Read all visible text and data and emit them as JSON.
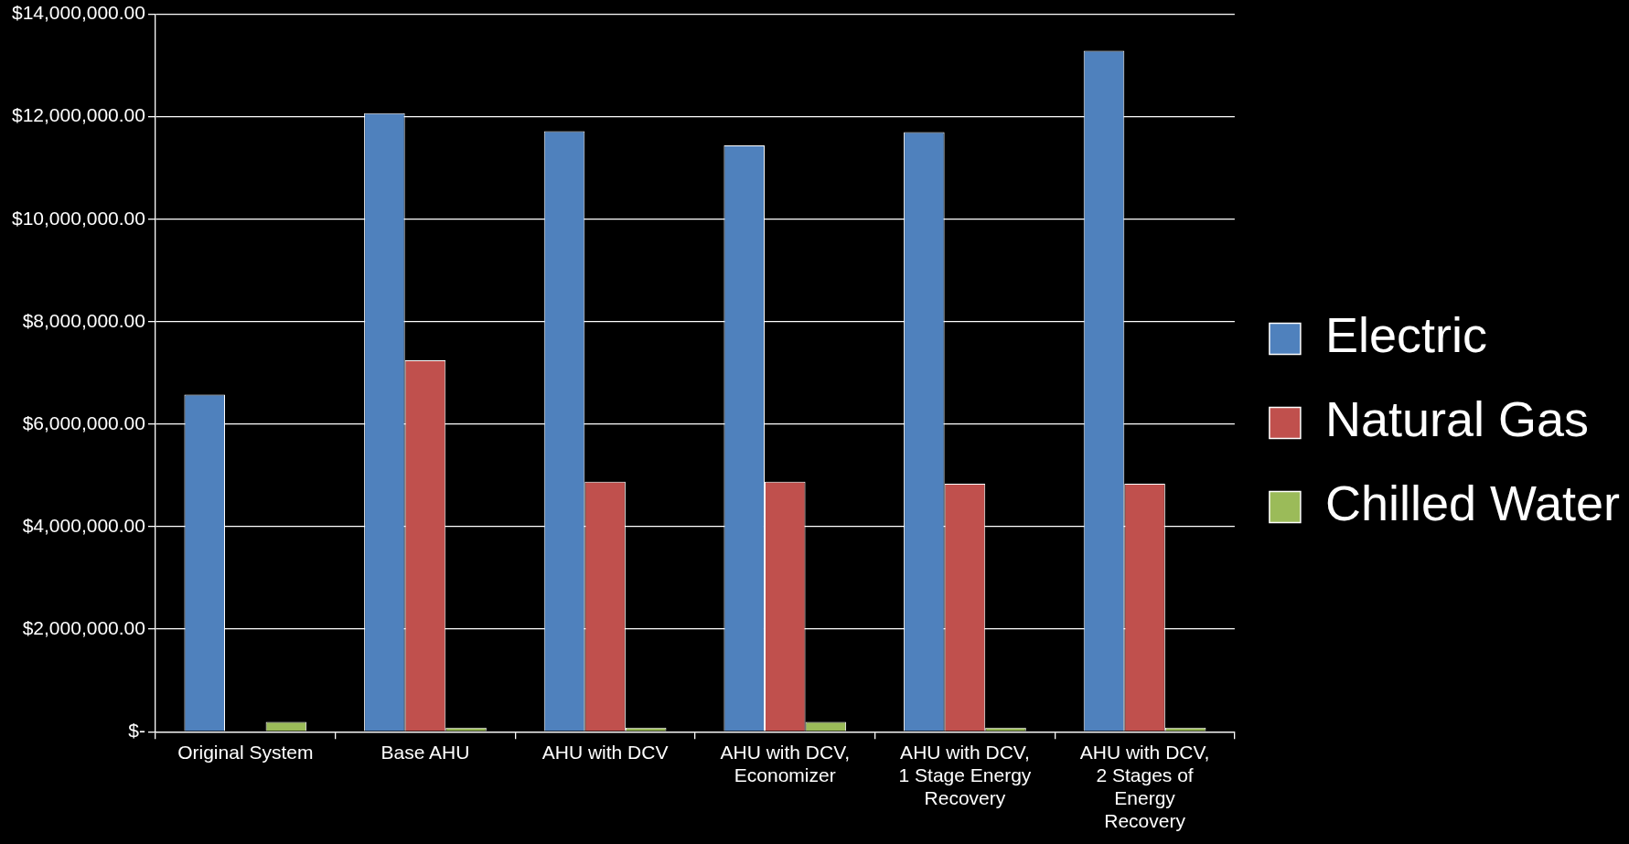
{
  "chart_data": {
    "type": "bar",
    "categories": [
      "Original System",
      "Base AHU",
      "AHU with DCV",
      "AHU with DCV, Economizer",
      "AHU with DCV, 1 Stage Energy Recovery",
      "AHU with DCV, 2 Stages of Energy Recovery"
    ],
    "series": [
      {
        "name": "Electric",
        "color": "#4f81bd",
        "values": [
          6580000,
          12070000,
          11720000,
          11440000,
          11700000,
          13290000
        ]
      },
      {
        "name": "Natural Gas",
        "color": "#c0504d",
        "values": [
          0,
          7250000,
          4880000,
          4880000,
          4840000,
          4840000
        ]
      },
      {
        "name": "Chilled Water",
        "color": "#9bbb59",
        "values": [
          190000,
          80000,
          80000,
          190000,
          80000,
          80000
        ]
      }
    ],
    "ylim": [
      0,
      14000000
    ],
    "yticks": [
      {
        "value": 0,
        "label": "$-"
      },
      {
        "value": 2000000,
        "label": "$2,000,000.00"
      },
      {
        "value": 4000000,
        "label": "$4,000,000.00"
      },
      {
        "value": 6000000,
        "label": "$6,000,000.00"
      },
      {
        "value": 8000000,
        "label": "$8,000,000.00"
      },
      {
        "value": 10000000,
        "label": "$10,000,000.00"
      },
      {
        "value": 12000000,
        "label": "$12,000,000.00"
      },
      {
        "value": 14000000,
        "label": "$14,000,000.00"
      }
    ],
    "grid": "y",
    "legend": "right"
  }
}
